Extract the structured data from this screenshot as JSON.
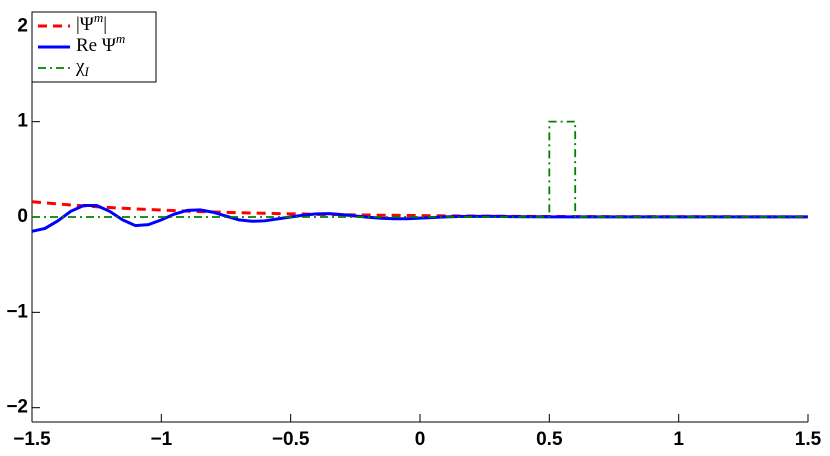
{
  "chart_data": {
    "type": "line",
    "x": [
      -1.5,
      -1.45,
      -1.4,
      -1.35,
      -1.3,
      -1.25,
      -1.2,
      -1.15,
      -1.1,
      -1.05,
      -1.0,
      -0.95,
      -0.9,
      -0.85,
      -0.8,
      -0.75,
      -0.7,
      -0.65,
      -0.6,
      -0.55,
      -0.5,
      -0.45,
      -0.4,
      -0.35,
      -0.3,
      -0.25,
      -0.2,
      -0.15,
      -0.1,
      -0.05,
      0,
      0.05,
      0.1,
      0.15,
      0.2,
      0.25,
      0.3,
      0.35,
      0.4,
      0.45,
      0.5,
      0.55,
      0.6,
      0.65,
      0.7,
      0.75,
      0.8,
      0.85,
      0.9,
      0.95,
      1.0,
      1.05,
      1.1,
      1.15,
      1.2,
      1.25,
      1.3,
      1.35,
      1.4,
      1.45,
      1.5
    ],
    "series": [
      {
        "name": "|Ψ^m|",
        "color": "#ff0000",
        "dash": "dashed",
        "values": [
          0.16,
          0.148,
          0.137,
          0.126,
          0.117,
          0.108,
          0.1,
          0.092,
          0.085,
          0.079,
          0.073,
          0.067,
          0.062,
          0.057,
          0.053,
          0.049,
          0.045,
          0.042,
          0.039,
          0.036,
          0.033,
          0.031,
          0.028,
          0.026,
          0.024,
          0.022,
          0.021,
          0.019,
          0.018,
          0.016,
          0.015,
          0.013,
          0.012,
          0.011,
          0.01,
          0.009,
          0.008,
          0.007,
          0.006,
          0.006,
          0.005,
          0.005,
          0.004,
          0.004,
          0.004,
          0.003,
          0.003,
          0.003,
          0.003,
          0.002,
          0.002,
          0.002,
          0.002,
          0.002,
          0.002,
          0.001,
          0.001,
          0.001,
          0.001,
          0.001,
          0.001
        ]
      },
      {
        "name": "Re Ψ^m",
        "color": "#0000ff",
        "dash": "solid",
        "values": [
          -0.15,
          -0.12,
          -0.04,
          0.06,
          0.12,
          0.12,
          0.06,
          -0.03,
          -0.09,
          -0.08,
          -0.03,
          0.03,
          0.07,
          0.075,
          0.05,
          0.01,
          -0.03,
          -0.045,
          -0.04,
          -0.02,
          0,
          0.02,
          0.033,
          0.035,
          0.025,
          0.01,
          -0.003,
          -0.013,
          -0.018,
          -0.018,
          -0.012,
          -0.005,
          0.001,
          0.005,
          0.007,
          0.007,
          0.006,
          0.004,
          0.003,
          0.002,
          0.001,
          0.001,
          0.001,
          0.001,
          0.001,
          0.001,
          0.001,
          0.001,
          0.001,
          0.001,
          0.001,
          0.001,
          0.001,
          0.001,
          0.001,
          0.001,
          0.001,
          0.001,
          0.001,
          0.001,
          0.001
        ]
      },
      {
        "name": "χ_I",
        "color": "#008000",
        "dash": "dashdot",
        "x": [
          -1.5,
          0.5,
          0.5,
          0.6,
          0.6,
          1.5
        ],
        "values": [
          0,
          0,
          1,
          1,
          0,
          0
        ]
      }
    ],
    "xlim": [
      -1.5,
      1.5
    ],
    "xticks": [
      {
        "value": -1.5,
        "label": "−1.5"
      },
      {
        "value": -1,
        "label": "−1"
      },
      {
        "value": -0.5,
        "label": "−0.5"
      },
      0,
      0.5,
      1,
      1.5
    ],
    "ylim": [
      -2.15,
      2.15
    ],
    "yticks": [
      {
        "value": -2,
        "label": "−2"
      },
      {
        "value": -1,
        "label": "−1"
      },
      0,
      1,
      2
    ],
    "grid": false,
    "legend": "top-left"
  }
}
